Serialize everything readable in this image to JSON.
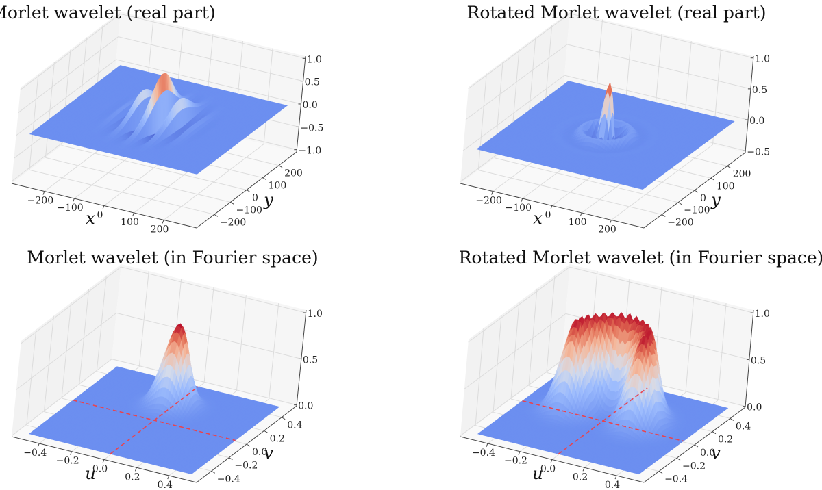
{
  "chart_data": [
    {
      "type": "surface",
      "title": "Morlet wavelet (real part)",
      "xlabel": "x",
      "ylabel": "y",
      "zlabel": "",
      "x_ticks": [
        "−200",
        "−100",
        "0",
        "100",
        "200"
      ],
      "x_tick_values": [
        -200,
        -100,
        0,
        100,
        200
      ],
      "y_ticks": [
        "−200",
        "−100",
        "0",
        "100",
        "200"
      ],
      "y_tick_values": [
        -200,
        -100,
        0,
        100,
        200
      ],
      "z_ticks": [
        "−1.0",
        "−0.5",
        "0.0",
        "0.5",
        "1.0"
      ],
      "z_tick_values": [
        -1,
        -0.5,
        0,
        0.5,
        1
      ],
      "xlim": [
        -310,
        310
      ],
      "ylim": [
        -310,
        310
      ],
      "zlim": [
        -1.05,
        1.05
      ],
      "data_range": [
        -280,
        280
      ],
      "colormap": "coolwarm",
      "model": "morlet_real",
      "params": {
        "amplitude": 1.0,
        "sigma": 55,
        "wavelength": 62
      },
      "grid": true
    },
    {
      "type": "surface",
      "title": "Rotated Morlet wavelet (real part)",
      "xlabel": "x",
      "ylabel": "y",
      "zlabel": "",
      "x_ticks": [
        "−200",
        "−100",
        "0",
        "100",
        "200"
      ],
      "x_tick_values": [
        -200,
        -100,
        0,
        100,
        200
      ],
      "y_ticks": [
        "−200",
        "−100",
        "0",
        "100",
        "200"
      ],
      "y_tick_values": [
        -200,
        -100,
        0,
        100,
        200
      ],
      "z_ticks": [
        "−0.5",
        "0.0",
        "0.5",
        "1.0"
      ],
      "z_tick_values": [
        -0.5,
        0,
        0.5,
        1
      ],
      "xlim": [
        -310,
        310
      ],
      "ylim": [
        -310,
        310
      ],
      "zlim": [
        -0.53,
        1.03
      ],
      "data_range": [
        -280,
        280
      ],
      "colormap": "coolwarm",
      "model": "rotated_morlet_real",
      "params": {
        "amplitude": 0.85,
        "sigma": 55,
        "wavelength": 70
      },
      "grid": true
    },
    {
      "type": "surface",
      "title": "Morlet wavelet (in Fourier space)",
      "xlabel": "u",
      "ylabel": "v",
      "zlabel": "",
      "x_ticks": [
        "−0.4",
        "−0.2",
        "0.0",
        "0.2",
        "0.4"
      ],
      "x_tick_values": [
        -0.4,
        -0.2,
        0,
        0.2,
        0.4
      ],
      "y_ticks": [
        "−0.4",
        "−0.2",
        "0.0",
        "0.2",
        "0.4"
      ],
      "y_tick_values": [
        -0.4,
        -0.2,
        0,
        0.2,
        0.4
      ],
      "z_ticks": [
        "0.0",
        "0.5",
        "1.0"
      ],
      "z_tick_values": [
        0,
        0.5,
        1
      ],
      "xlim": [
        -0.57,
        0.57
      ],
      "ylim": [
        -0.57,
        0.57
      ],
      "zlim": [
        -0.01,
        1.03
      ],
      "data_range": [
        -0.5,
        0.5
      ],
      "colormap": "coolwarm",
      "model": "morlet_fourier",
      "params": {
        "amplitude": 0.9,
        "center_u": 0.0,
        "center_v": 0.2,
        "sigma": 0.07
      },
      "reference_lines": [
        {
          "axis": "u",
          "at": 0,
          "style": "dashed",
          "color": "#e8434f"
        },
        {
          "axis": "v",
          "at": 0,
          "style": "dashed",
          "color": "#e8434f"
        }
      ],
      "grid": true
    },
    {
      "type": "surface",
      "title": "Rotated Morlet wavelet (in Fourier space)",
      "xlabel": "u",
      "ylabel": "v",
      "zlabel": "",
      "x_ticks": [
        "−0.4",
        "−0.2",
        "0.0",
        "0.2",
        "0.4"
      ],
      "x_tick_values": [
        -0.4,
        -0.2,
        0,
        0.2,
        0.4
      ],
      "y_ticks": [
        "−0.4",
        "−0.2",
        "0.0",
        "0.2",
        "0.4"
      ],
      "y_tick_values": [
        -0.4,
        -0.2,
        0,
        0.2,
        0.4
      ],
      "z_ticks": [
        "0.0",
        "0.5",
        "1.0"
      ],
      "z_tick_values": [
        0,
        0.5,
        1
      ],
      "xlim": [
        -0.57,
        0.57
      ],
      "ylim": [
        -0.57,
        0.57
      ],
      "zlim": [
        -0.01,
        1.03
      ],
      "data_range": [
        -0.5,
        0.5
      ],
      "colormap": "coolwarm",
      "model": "rotated_morlet_fourier",
      "params": {
        "amplitude": 1.0,
        "ring_radius": 0.21,
        "sigma": 0.07
      },
      "reference_lines": [
        {
          "axis": "u",
          "at": 0,
          "style": "dashed",
          "color": "#e8434f"
        },
        {
          "axis": "v",
          "at": 0,
          "style": "dashed",
          "color": "#e8434f"
        }
      ],
      "grid": true
    }
  ]
}
